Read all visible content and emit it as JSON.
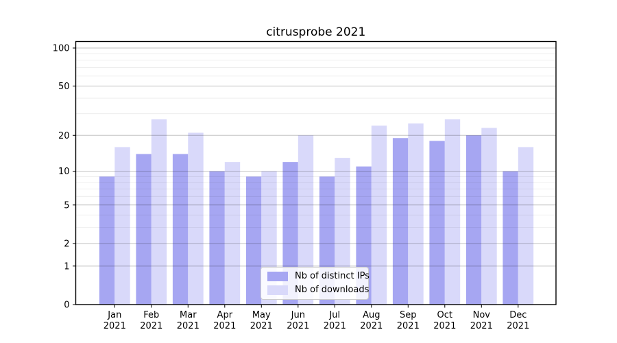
{
  "chart_data": {
    "type": "bar",
    "title": "citrusprobe 2021",
    "categories": [
      "Jan",
      "Feb",
      "Mar",
      "Apr",
      "May",
      "Jun",
      "Jul",
      "Aug",
      "Sep",
      "Oct",
      "Nov",
      "Dec"
    ],
    "category_year": "2021",
    "series": [
      {
        "name": "Nb of distinct IPs",
        "color": "#a6a6f2",
        "values": [
          9,
          14,
          14,
          10,
          9,
          12,
          9,
          11,
          19,
          18,
          20,
          10
        ]
      },
      {
        "name": "Nb of downloads",
        "color": "#d9d9fa",
        "values": [
          16,
          27,
          21,
          12,
          10,
          20,
          13,
          24,
          25,
          27,
          23,
          16
        ]
      }
    ],
    "yscale": "log1p",
    "ylim": [
      0,
      113
    ],
    "yticks": [
      0,
      1,
      2,
      5,
      10,
      20,
      50,
      100
    ],
    "yticks_minor": [
      3,
      4,
      6,
      7,
      8,
      9,
      30,
      40,
      60,
      70,
      80,
      90
    ],
    "grid": "on",
    "legend_position": "lower center",
    "colors": {
      "axis": "#000000",
      "major_grid": "rgba(0,0,0,0.24)",
      "minor_grid": "rgba(0,0,0,0.08)",
      "text": "#000000"
    }
  }
}
